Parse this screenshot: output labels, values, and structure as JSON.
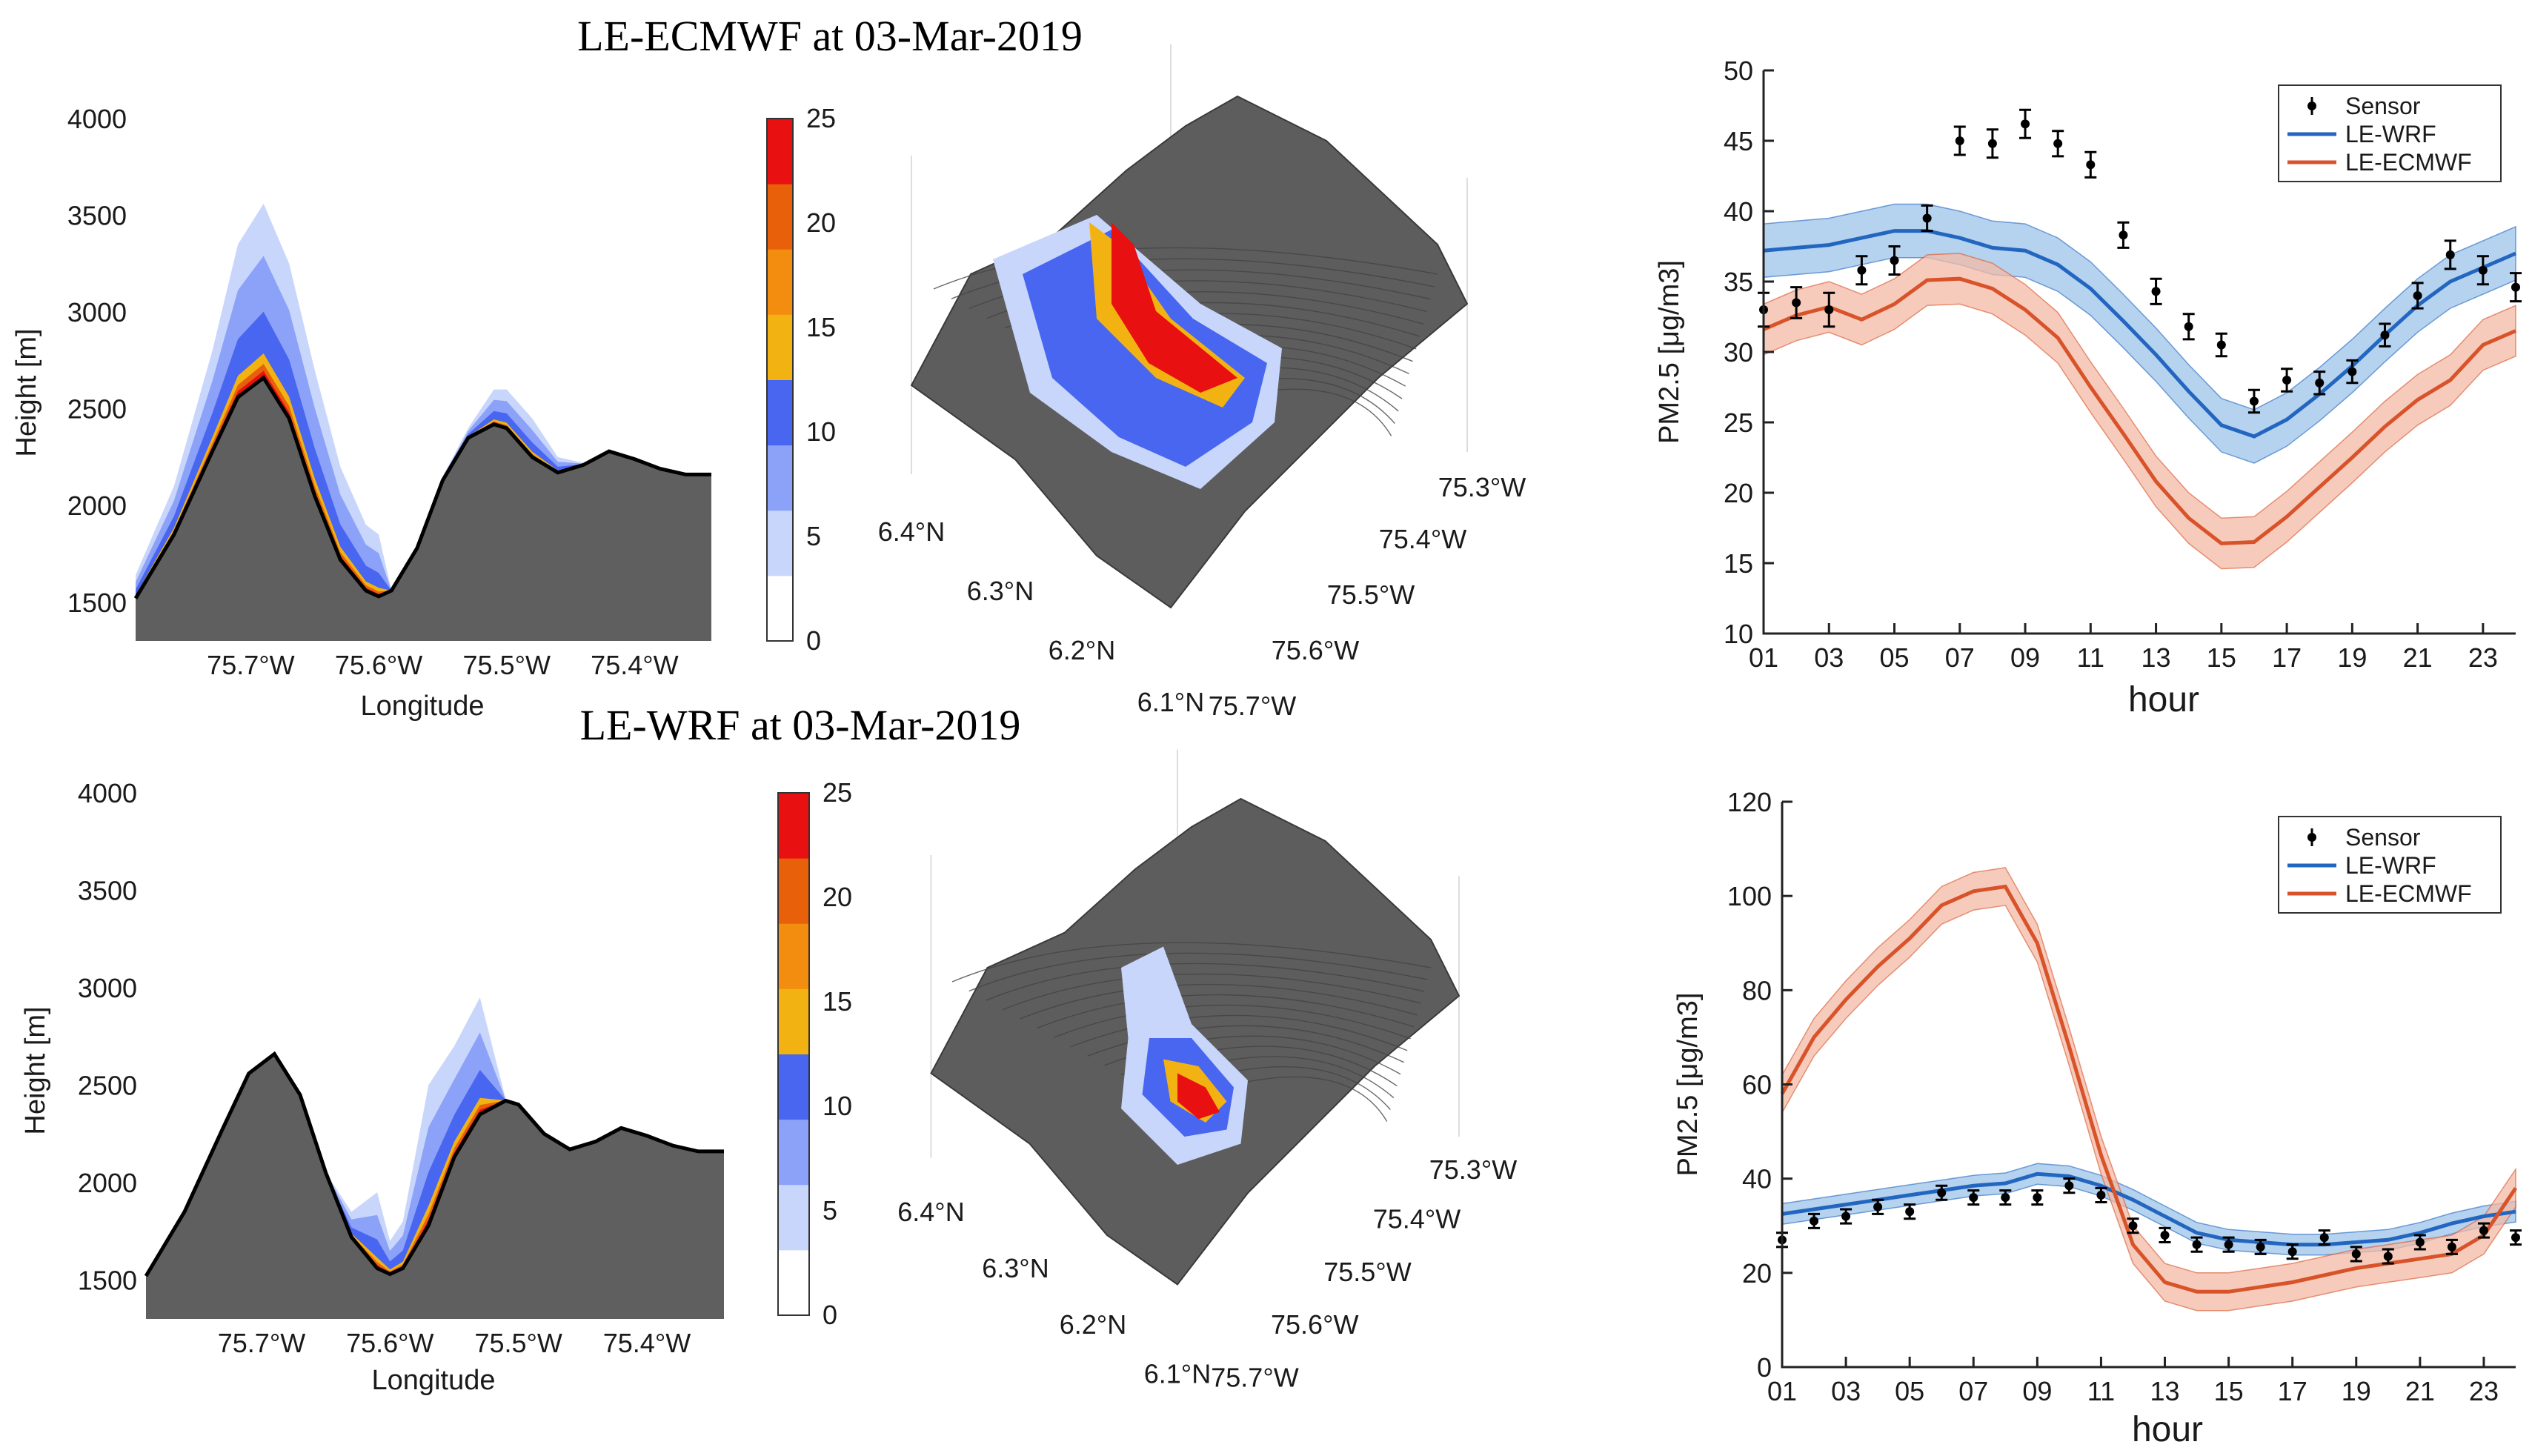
{
  "chart_data": [
    {
      "id": "ecmwf-cross",
      "type": "area",
      "title": "LE-ECMWF at 03-Mar-2019",
      "xlabel": "Longitude",
      "ylabel": "Height [m]",
      "x_ticks": [
        "75.7°W",
        "75.6°W",
        "75.5°W",
        "75.4°W"
      ],
      "x_tick_values": [
        75.7,
        75.6,
        75.5,
        75.4
      ],
      "y_ticks": [
        "1500",
        "2000",
        "2500",
        "3000",
        "3500",
        "4000"
      ],
      "xlim": [
        75.79,
        75.34
      ],
      "ylim": [
        1300,
        4000
      ],
      "terrain": {
        "lon": [
          75.79,
          75.76,
          75.73,
          75.71,
          75.69,
          75.67,
          75.65,
          75.63,
          75.61,
          75.6,
          75.59,
          75.57,
          75.55,
          75.53,
          75.51,
          75.5,
          75.48,
          75.46,
          75.44,
          75.42,
          75.4,
          75.38,
          75.36,
          75.34
        ],
        "height": [
          1520,
          1850,
          2280,
          2560,
          2660,
          2450,
          2050,
          1720,
          1560,
          1530,
          1560,
          1780,
          2130,
          2350,
          2420,
          2400,
          2250,
          2170,
          2210,
          2280,
          2240,
          2190,
          2160,
          2160
        ]
      },
      "pollution_top": [
        1640,
        2100,
        2800,
        3350,
        3560,
        3250,
        2700,
        2200,
        1900,
        1850,
        1560,
        1800,
        2150,
        2400,
        2600,
        2600,
        2450,
        2250,
        2220,
        2280,
        2240,
        2190,
        2160,
        2160
      ]
    },
    {
      "id": "ecmwf-colorbar",
      "type": "heatmap",
      "ticks": [
        "0",
        "5",
        "10",
        "15",
        "20",
        "25"
      ],
      "colors": [
        "#ffffff",
        "#c8d6fb",
        "#8ca2f8",
        "#4866f0",
        "#f2b312",
        "#f28d10",
        "#e8610a",
        "#e81010"
      ]
    },
    {
      "id": "ecmwf-3d",
      "type": "heatmap",
      "lat_ticks": [
        "6.4°N",
        "6.3°N",
        "6.2°N",
        "6.1°N"
      ],
      "lon_ticks": [
        "75.3°W",
        "75.4°W",
        "75.5°W",
        "75.6°W",
        "75.7°W"
      ]
    },
    {
      "id": "ecmwf-timeseries",
      "type": "line",
      "xlabel": "hour",
      "ylabel": "PM2.5 [μg/m3]",
      "ylim": [
        10,
        50
      ],
      "y_ticks": [
        "10",
        "15",
        "20",
        "25",
        "30",
        "35",
        "40",
        "45",
        "50"
      ],
      "x_ticks": [
        "01",
        "03",
        "05",
        "07",
        "09",
        "11",
        "13",
        "15",
        "17",
        "19",
        "21",
        "23"
      ],
      "legend": [
        "Sensor",
        "LE-WRF",
        "LE-ECMWF"
      ],
      "hours": [
        1,
        2,
        3,
        4,
        5,
        6,
        7,
        8,
        9,
        10,
        11,
        12,
        13,
        14,
        15,
        16,
        17,
        18,
        19,
        20,
        21,
        22,
        23,
        24
      ],
      "sensor": [
        33,
        33.5,
        33,
        35.8,
        36.5,
        39.5,
        45,
        44.8,
        46.2,
        44.8,
        43.3,
        38.3,
        34.3,
        31.8,
        30.5,
        26.5,
        28,
        27.8,
        28.6,
        31.2,
        34,
        36.9,
        35.8,
        34.6
      ],
      "sensor_err": [
        1.2,
        1.1,
        1.2,
        1,
        1,
        0.9,
        1,
        1,
        1,
        0.9,
        0.9,
        0.9,
        0.9,
        0.9,
        0.8,
        0.8,
        0.8,
        0.8,
        0.8,
        0.8,
        0.9,
        1,
        1,
        1
      ],
      "series": [
        {
          "name": "LE-WRF",
          "color": "#2266c0",
          "band": "#9cc3ea",
          "values": [
            37.2,
            37.4,
            37.6,
            38.1,
            38.6,
            38.6,
            38.1,
            37.4,
            37.2,
            36.2,
            34.5,
            32.2,
            29.8,
            27.2,
            24.8,
            24,
            25.2,
            27,
            29,
            31.2,
            33.3,
            35,
            36,
            37
          ],
          "spread": 1.9
        },
        {
          "name": "LE-ECMWF",
          "color": "#d8532a",
          "band": "#f3b9a6",
          "values": [
            31.6,
            32.6,
            33.2,
            32.3,
            33.4,
            35.1,
            35.2,
            34.5,
            33,
            31,
            27.5,
            24.2,
            20.8,
            18.2,
            16.4,
            16.5,
            18.3,
            20.4,
            22.5,
            24.7,
            26.6,
            28,
            30.5,
            31.5
          ],
          "spread": 1.8
        }
      ]
    },
    {
      "id": "wrf-cross",
      "type": "area",
      "title": "LE-WRF at 03-Mar-2019",
      "xlabel": "Longitude",
      "ylabel": "Height [m]",
      "x_ticks": [
        "75.7°W",
        "75.6°W",
        "75.5°W",
        "75.4°W"
      ],
      "x_tick_values": [
        75.7,
        75.6,
        75.5,
        75.4
      ],
      "y_ticks": [
        "1500",
        "2000",
        "2500",
        "3000",
        "3500",
        "4000"
      ],
      "xlim": [
        75.79,
        75.34
      ],
      "ylim": [
        1300,
        4000
      ],
      "terrain": {
        "lon": [
          75.79,
          75.76,
          75.73,
          75.71,
          75.69,
          75.67,
          75.65,
          75.63,
          75.61,
          75.6,
          75.59,
          75.57,
          75.55,
          75.53,
          75.51,
          75.5,
          75.48,
          75.46,
          75.44,
          75.42,
          75.4,
          75.38,
          75.36,
          75.34
        ],
        "height": [
          1520,
          1850,
          2280,
          2560,
          2660,
          2450,
          2050,
          1720,
          1560,
          1530,
          1560,
          1780,
          2130,
          2350,
          2420,
          2400,
          2250,
          2170,
          2210,
          2280,
          2240,
          2190,
          2160,
          2160
        ]
      },
      "pollution_top": [
        1520,
        1850,
        2280,
        2560,
        2660,
        2450,
        2050,
        1850,
        1950,
        1700,
        1800,
        2500,
        2700,
        2950,
        2430,
        2400,
        2250,
        2170,
        2210,
        2280,
        2240,
        2190,
        2160,
        2160
      ]
    },
    {
      "id": "wrf-colorbar",
      "type": "heatmap",
      "ticks": [
        "0",
        "5",
        "10",
        "15",
        "20",
        "25"
      ],
      "colors": [
        "#ffffff",
        "#c8d6fb",
        "#8ca2f8",
        "#4866f0",
        "#f2b312",
        "#f28d10",
        "#e8610a",
        "#e81010"
      ]
    },
    {
      "id": "wrf-3d",
      "type": "heatmap",
      "lat_ticks": [
        "6.4°N",
        "6.3°N",
        "6.2°N",
        "6.1°N"
      ],
      "lon_ticks": [
        "75.3°W",
        "75.4°W",
        "75.5°W",
        "75.6°W",
        "75.7°W"
      ]
    },
    {
      "id": "wrf-timeseries",
      "type": "line",
      "xlabel": "hour",
      "ylabel": "PM2.5 [μg/m3]",
      "ylim": [
        0,
        120
      ],
      "y_ticks": [
        "0",
        "20",
        "40",
        "60",
        "80",
        "100",
        "120"
      ],
      "x_ticks": [
        "01",
        "03",
        "05",
        "07",
        "09",
        "11",
        "13",
        "15",
        "17",
        "19",
        "21",
        "23"
      ],
      "legend": [
        "Sensor",
        "LE-WRF",
        "LE-ECMWF"
      ],
      "hours": [
        1,
        2,
        3,
        4,
        5,
        6,
        7,
        8,
        9,
        10,
        11,
        12,
        13,
        14,
        15,
        16,
        17,
        18,
        19,
        20,
        21,
        22,
        23,
        24
      ],
      "sensor": [
        27,
        31,
        32,
        34,
        33,
        37,
        36,
        36,
        36,
        38.5,
        36.5,
        30,
        28,
        26,
        26,
        25.5,
        24.5,
        27.5,
        24,
        23.5,
        26.5,
        25.5,
        29,
        27.5
      ],
      "sensor_err": [
        1.5,
        1.5,
        1.5,
        1.5,
        1.5,
        1.5,
        1.5,
        1.5,
        1.5,
        1.5,
        1.5,
        1.5,
        1.5,
        1.5,
        1.5,
        1.5,
        1.5,
        1.5,
        1.5,
        1.5,
        1.5,
        1.5,
        1.5,
        1.5
      ],
      "series": [
        {
          "name": "LE-WRF",
          "color": "#2266c0",
          "band": "#9cc3ea",
          "values": [
            32.5,
            33.5,
            34.5,
            35.5,
            36.5,
            37.5,
            38.5,
            39,
            41,
            40.5,
            38.5,
            35.5,
            32,
            28.5,
            27,
            26.5,
            26,
            26,
            26.5,
            27,
            28.5,
            30.5,
            32,
            33
          ],
          "spread": 2.2
        },
        {
          "name": "LE-ECMWF",
          "color": "#d8532a",
          "band": "#f3b9a6",
          "values": [
            58,
            70,
            78,
            85,
            91,
            98,
            101,
            102,
            90,
            68,
            45,
            26,
            18,
            16,
            16,
            17,
            18,
            19.5,
            21,
            22,
            23,
            24,
            28,
            38
          ],
          "spread": 4
        }
      ]
    }
  ]
}
